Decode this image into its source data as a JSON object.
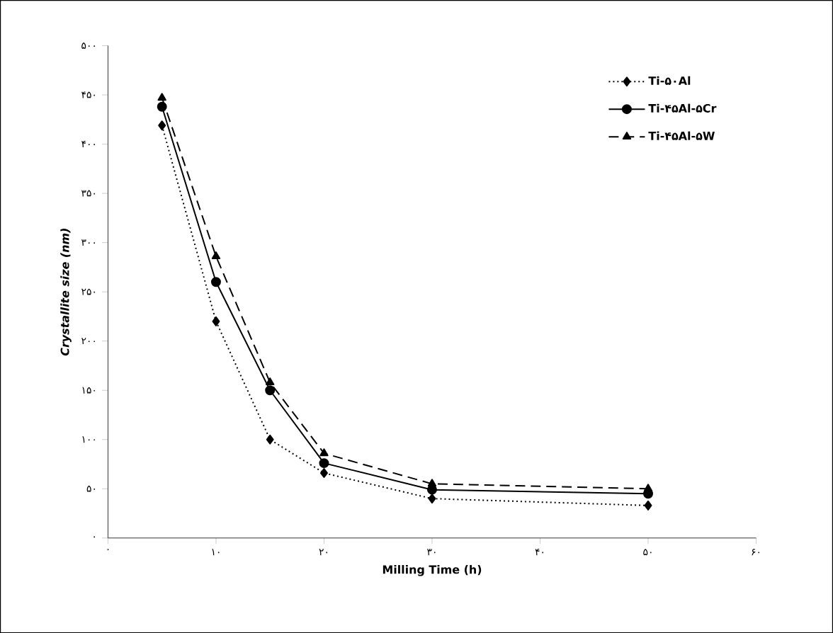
{
  "chart_data": {
    "type": "line",
    "xlabel": "Milling Time (h)",
    "ylabel": "Crystallite size (nm)",
    "xlim": [
      0,
      60
    ],
    "ylim": [
      0,
      500
    ],
    "xticks": [
      {
        "value": 0,
        "label": "۰"
      },
      {
        "value": 10,
        "label": "۱۰"
      },
      {
        "value": 20,
        "label": "۲۰"
      },
      {
        "value": 30,
        "label": "۳۰"
      },
      {
        "value": 40,
        "label": "۴۰"
      },
      {
        "value": 50,
        "label": "۵۰"
      },
      {
        "value": 60,
        "label": "۶۰"
      }
    ],
    "yticks": [
      {
        "value": 0,
        "label": "۰"
      },
      {
        "value": 50,
        "label": "۵۰"
      },
      {
        "value": 100,
        "label": "۱۰۰"
      },
      {
        "value": 150,
        "label": "۱۵۰"
      },
      {
        "value": 200,
        "label": "۲۰۰"
      },
      {
        "value": 250,
        "label": "۲۵۰"
      },
      {
        "value": 300,
        "label": "۳۰۰"
      },
      {
        "value": 350,
        "label": "۳۵۰"
      },
      {
        "value": 400,
        "label": "۴۰۰"
      },
      {
        "value": 450,
        "label": "۴۵۰"
      },
      {
        "value": 500,
        "label": "۵۰۰"
      }
    ],
    "x": [
      5,
      10,
      15,
      20,
      30,
      50
    ],
    "grid": false,
    "legend": "top right",
    "series": [
      {
        "name": "Ti-۵۰Al",
        "color": "#000000",
        "marker": "diamond",
        "line_style": "dotted",
        "values": [
          419,
          220,
          100,
          66,
          40,
          33
        ]
      },
      {
        "name": "Ti-۴۵Al-۵Cr",
        "color": "#000000",
        "marker": "circle",
        "line_style": "solid",
        "values": [
          438,
          260,
          150,
          76,
          49,
          45
        ]
      },
      {
        "name": "Ti-۴۵Al-۵W",
        "color": "#000000",
        "marker": "triangle",
        "line_style": "dashed",
        "values": [
          447,
          286,
          158,
          86,
          55,
          50
        ]
      }
    ]
  }
}
